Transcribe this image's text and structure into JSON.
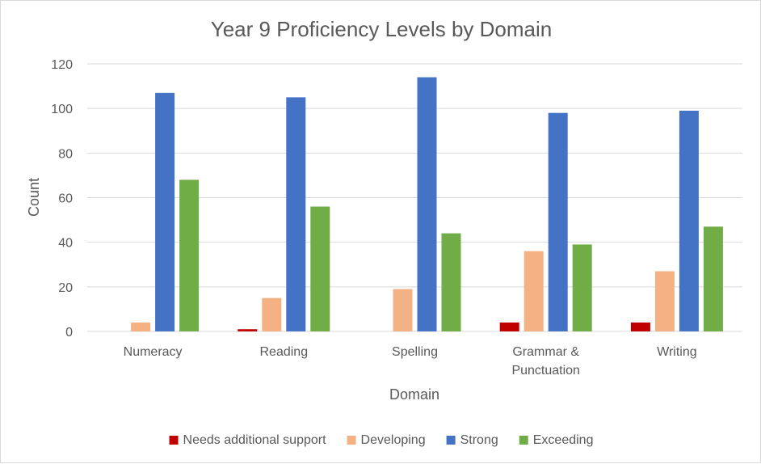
{
  "chart_data": {
    "type": "bar",
    "title": "Year 9 Proficiency Levels by Domain",
    "xlabel": "Domain",
    "ylabel": "Count",
    "ylim": [
      0,
      120
    ],
    "ytick_step": 20,
    "grid": true,
    "legend_position": "bottom",
    "categories": [
      [
        "Numeracy"
      ],
      [
        "Reading"
      ],
      [
        "Spelling"
      ],
      [
        "Grammar &",
        "Punctuation"
      ],
      [
        "Writing"
      ]
    ],
    "series": [
      {
        "name": "Needs additional support",
        "color": "#c00000",
        "values": [
          0,
          1,
          0,
          4,
          4
        ]
      },
      {
        "name": "Developing",
        "color": "#f4b183",
        "values": [
          4,
          15,
          19,
          36,
          27
        ]
      },
      {
        "name": "Strong",
        "color": "#4472c4",
        "values": [
          107,
          105,
          114,
          98,
          99
        ]
      },
      {
        "name": "Exceeding",
        "color": "#70ad47",
        "values": [
          68,
          56,
          44,
          39,
          47
        ]
      }
    ]
  }
}
